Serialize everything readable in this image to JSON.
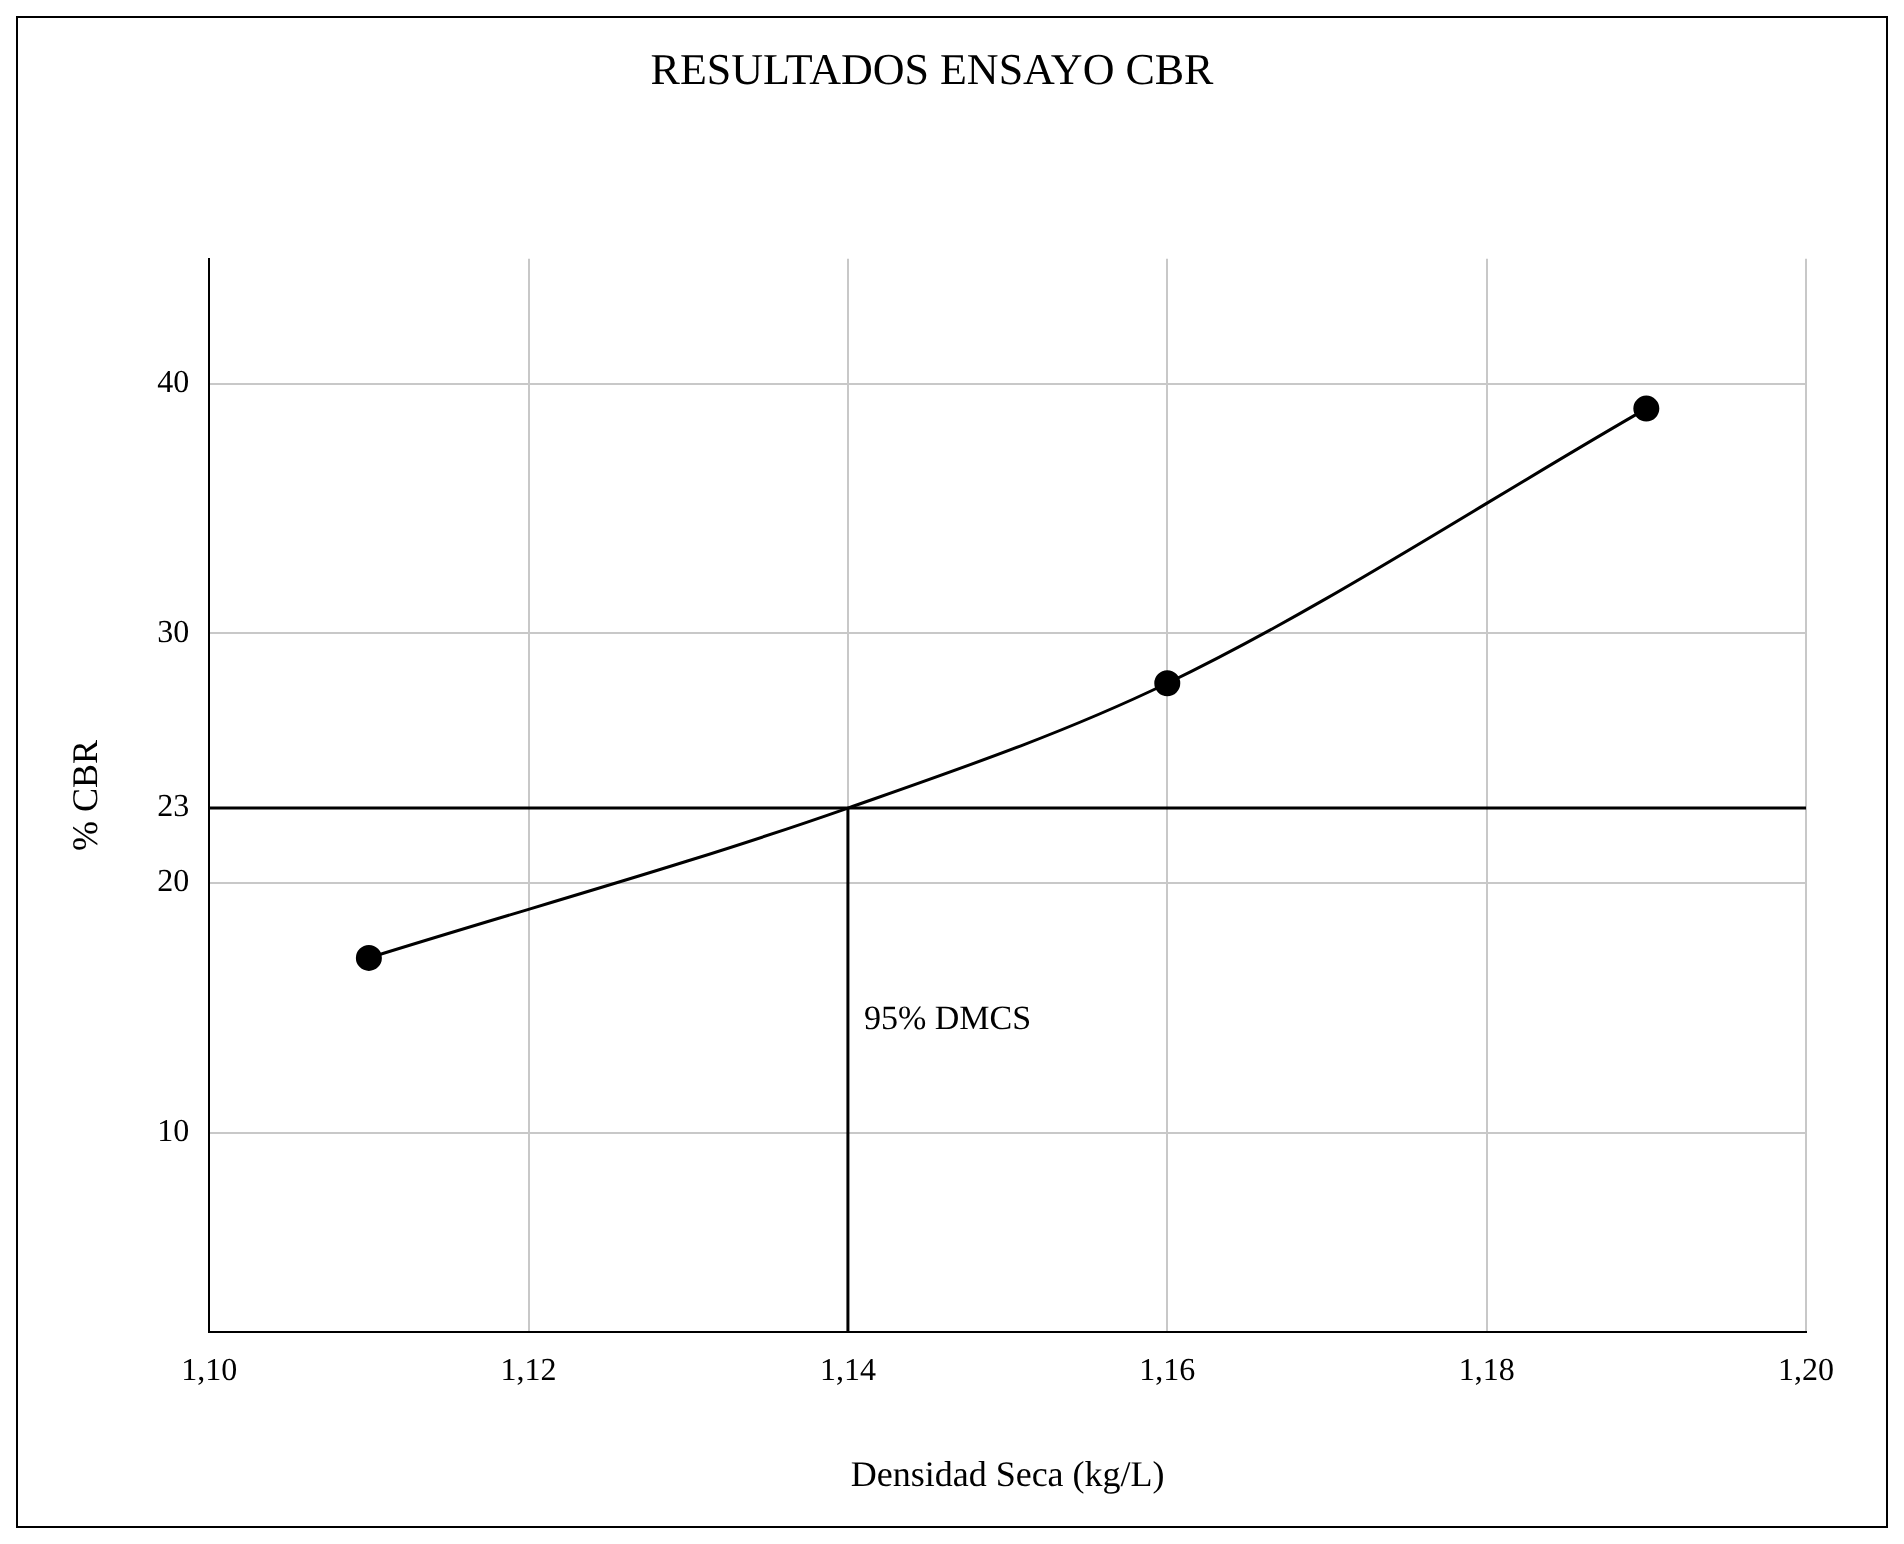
{
  "chart_data": {
    "type": "line",
    "title": "RESULTADOS ENSAYO CBR",
    "xlabel": "Densidad Seca (kg/L)",
    "ylabel": "% CBR",
    "xlim": [
      1.1,
      1.2
    ],
    "xticks": [
      {
        "value": 1.1,
        "label": "1,10"
      },
      {
        "value": 1.12,
        "label": "1,12"
      },
      {
        "value": 1.14,
        "label": "1,14"
      },
      {
        "value": 1.16,
        "label": "1,16"
      },
      {
        "value": 1.18,
        "label": "1,18"
      },
      {
        "value": 1.2,
        "label": "1,20"
      }
    ],
    "ylim": [
      2,
      45
    ],
    "yticks": [
      10,
      20,
      23,
      30,
      40
    ],
    "grid": true,
    "series": [
      {
        "type": "line",
        "color": "#000000",
        "marker": "none",
        "x": [
          1.11,
          1.14,
          1.16,
          1.19
        ],
        "values": [
          17,
          23,
          28,
          39
        ]
      },
      {
        "type": "scatter",
        "color": "#000000",
        "marker": "circle",
        "x": [
          1.11,
          1.16,
          1.19
        ],
        "values": [
          17,
          28,
          39
        ]
      },
      {
        "type": "line",
        "color": "#000000",
        "marker": "none",
        "x": [
          1.14,
          1.14
        ],
        "values": [
          2,
          23
        ]
      }
    ],
    "ref_lines": [
      {
        "axis": "y",
        "value": 23,
        "color": "#000000"
      }
    ],
    "annotations": [
      {
        "text": "95% DMCS",
        "x": 1.14,
        "y": 14.5
      }
    ]
  }
}
